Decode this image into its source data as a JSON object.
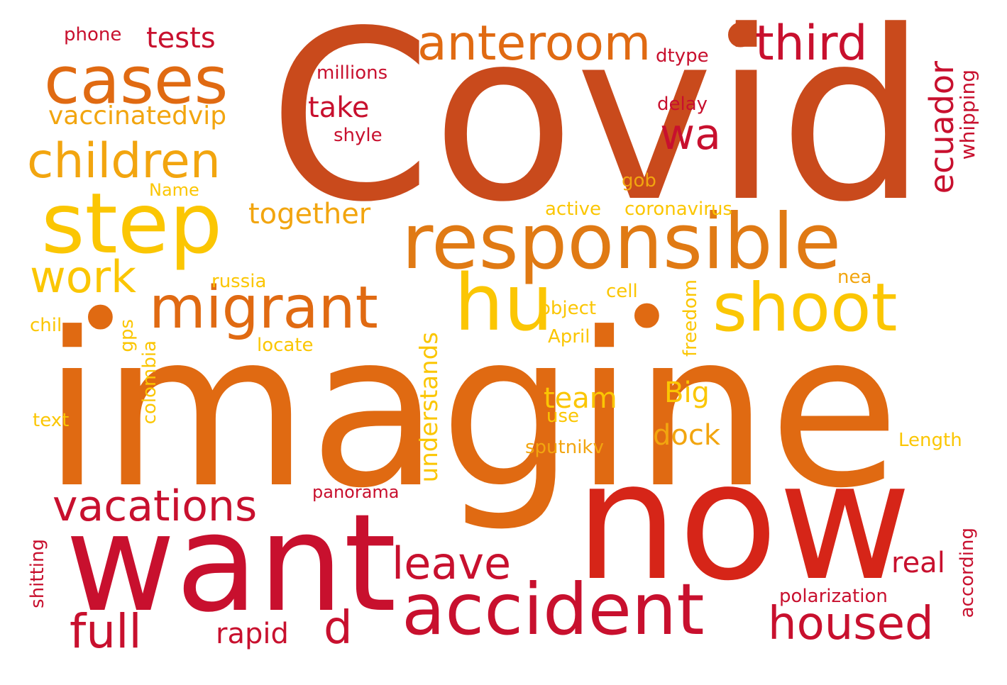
{
  "colors": {
    "background": "#ffffff",
    "palette": [
      "#c8102e",
      "#d62518",
      "#c94a1c",
      "#e06a12",
      "#e8850f",
      "#f2a50f",
      "#fbc603"
    ]
  },
  "words": [
    {
      "text": "Covid",
      "color": "#c94a1c"
    },
    {
      "text": "imagine",
      "color": "#e06a12"
    },
    {
      "text": "now",
      "color": "#d62518"
    },
    {
      "text": "want",
      "color": "#c8102e"
    },
    {
      "text": "responsible",
      "color": "#e07a14"
    },
    {
      "text": "step",
      "color": "#fbc603"
    },
    {
      "text": "accident",
      "color": "#c8102e"
    },
    {
      "text": "cases",
      "color": "#e06a12"
    },
    {
      "text": "migrant",
      "color": "#e06a12"
    },
    {
      "text": "shoot",
      "color": "#fbc603"
    },
    {
      "text": "hu",
      "color": "#fbc603"
    },
    {
      "text": "anteroom",
      "color": "#e06a12"
    },
    {
      "text": "third",
      "color": "#c8102e"
    },
    {
      "text": "children",
      "color": "#f2a50f"
    },
    {
      "text": "vacations",
      "color": "#c8102e"
    },
    {
      "text": "housed",
      "color": "#c8102e"
    },
    {
      "text": "full",
      "color": "#c8102e"
    },
    {
      "text": "leave",
      "color": "#c8102e"
    },
    {
      "text": "work",
      "color": "#fbc603"
    },
    {
      "text": "wa",
      "color": "#c8102e"
    },
    {
      "text": "d",
      "color": "#c8102e"
    },
    {
      "text": "ecuador",
      "color": "#c8102e"
    },
    {
      "text": "together",
      "color": "#f2a50f"
    },
    {
      "text": "vaccinatedvip",
      "color": "#f2a50f"
    },
    {
      "text": "take",
      "color": "#c8102e"
    },
    {
      "text": "tests",
      "color": "#c8102e"
    },
    {
      "text": "team",
      "color": "#fbc603"
    },
    {
      "text": "dock",
      "color": "#f2a50f"
    },
    {
      "text": "Big",
      "color": "#fbc603"
    },
    {
      "text": "rapid",
      "color": "#c8102e"
    },
    {
      "text": "real",
      "color": "#c8102e"
    },
    {
      "text": "understands",
      "color": "#fbc603"
    },
    {
      "text": "whipping",
      "color": "#c8102e"
    },
    {
      "text": "phone",
      "color": "#c8102e"
    },
    {
      "text": "millions",
      "color": "#c8102e"
    },
    {
      "text": "dtype",
      "color": "#c8102e"
    },
    {
      "text": "delay",
      "color": "#c8102e"
    },
    {
      "text": "shyle",
      "color": "#c8102e"
    },
    {
      "text": "Name",
      "color": "#fbc603"
    },
    {
      "text": "gob",
      "color": "#f2a50f"
    },
    {
      "text": "active",
      "color": "#fbc603"
    },
    {
      "text": "coronavirus",
      "color": "#fbc603"
    },
    {
      "text": "russia",
      "color": "#fbc603"
    },
    {
      "text": "nea",
      "color": "#f2a50f"
    },
    {
      "text": "cell",
      "color": "#fbc603"
    },
    {
      "text": "object",
      "color": "#fbc603"
    },
    {
      "text": "chil",
      "color": "#fbc603"
    },
    {
      "text": "gps",
      "color": "#fbc603"
    },
    {
      "text": "freedom",
      "color": "#fbc603"
    },
    {
      "text": "April",
      "color": "#fbc603"
    },
    {
      "text": "locate",
      "color": "#fbc603"
    },
    {
      "text": "colombia",
      "color": "#fbc603"
    },
    {
      "text": "text",
      "color": "#fbc603"
    },
    {
      "text": "use",
      "color": "#fbc603"
    },
    {
      "text": "sputnikv",
      "color": "#f2a50f"
    },
    {
      "text": "Length",
      "color": "#fbc603"
    },
    {
      "text": "panorama",
      "color": "#c8102e"
    },
    {
      "text": "polarization",
      "color": "#c8102e"
    },
    {
      "text": "shitting",
      "color": "#c8102e"
    },
    {
      "text": "according",
      "color": "#c8102e"
    },
    {
      "text": "•",
      "color": "#e06a12"
    },
    {
      "text": "•",
      "color": "#c94a1c"
    },
    {
      "text": "•",
      "color": "#e06a12"
    }
  ]
}
